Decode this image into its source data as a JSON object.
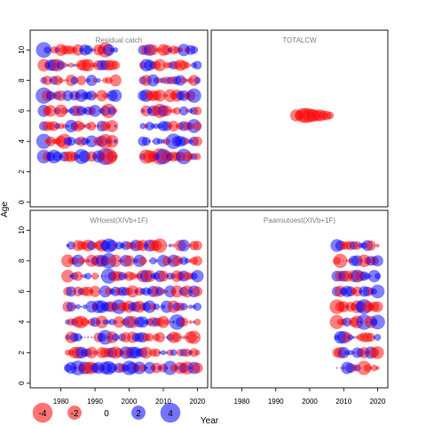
{
  "chart_data": {
    "type": "scatter",
    "subtype": "bubble-residuals",
    "xlabel": "Year",
    "ylabel": "Age",
    "xticks": [
      1980,
      1990,
      2000,
      2010,
      2020
    ],
    "yticks": [
      0,
      2,
      4,
      6,
      8,
      10
    ],
    "xlim": [
      1971,
      2023
    ],
    "ylim": [
      -0.3,
      11.3
    ],
    "colors": {
      "positive": "#0000FF",
      "negative": "#FF0000",
      "frame": "#000000",
      "title": "#808080"
    },
    "legend": {
      "placement": "bottom-left",
      "entries": [
        {
          "label": "-4",
          "value": -4
        },
        {
          "label": "-2",
          "value": -2
        },
        {
          "label": "0",
          "value": 0
        },
        {
          "label": "2",
          "value": 2
        },
        {
          "label": "4",
          "value": 4
        }
      ]
    },
    "panels": [
      {
        "title": "Residual catch",
        "ages": [
          3,
          4,
          5,
          6,
          7,
          8,
          9,
          10
        ],
        "year_ranges": [
          [
            1975,
            1996
          ],
          [
            2004,
            2020
          ]
        ],
        "x_tick_labels": false,
        "y_tick_labels": true,
        "residuals": [
          {
            "year": 1975,
            "age": 3,
            "value": 3.0
          },
          {
            "year": 1978,
            "age": 3,
            "value": 3.0
          },
          {
            "year": 1986,
            "age": 3,
            "value": 3.6
          },
          {
            "year": 1993,
            "age": 3,
            "value": 4.5
          },
          {
            "year": 1994,
            "age": 3,
            "value": -4.2
          },
          {
            "year": 2005,
            "age": 3,
            "value": -3.2
          },
          {
            "year": 2009,
            "age": 3,
            "value": -4.3
          },
          {
            "year": 2010,
            "age": 3,
            "value": 3.8
          },
          {
            "year": 2016,
            "age": 3,
            "value": 3.8
          },
          {
            "year": 1975,
            "age": 4,
            "value": 3.6
          },
          {
            "year": 1981,
            "age": 4,
            "value": -3.6
          },
          {
            "year": 1993,
            "age": 4,
            "value": -3.4
          },
          {
            "year": 2013,
            "age": 4,
            "value": 3.8
          },
          {
            "year": 1975,
            "age": 7,
            "value": 4.2
          },
          {
            "year": 1975,
            "age": 10,
            "value": 3.9
          },
          {
            "year": 1993,
            "age": 10,
            "value": -3.6
          },
          {
            "year": 1994,
            "age": 6,
            "value": -3.3
          },
          {
            "year": 2009,
            "age": 6,
            "value": -3.2
          },
          {
            "year": 2019,
            "age": 5,
            "value": 3.1
          },
          {
            "year": 2019,
            "age": 7,
            "value": 3.3
          }
        ]
      },
      {
        "title": "TOTALCW",
        "ages": [
          5.7
        ],
        "year_ranges": [
          [
            1996,
            2006
          ]
        ],
        "x_tick_labels": false,
        "y_tick_labels": false,
        "residuals": [
          {
            "year": 1996,
            "age": 5.7,
            "value": -2.3
          },
          {
            "year": 1997,
            "age": 5.7,
            "value": -1.6
          },
          {
            "year": 1998,
            "age": 5.7,
            "value": -3.4
          },
          {
            "year": 1999,
            "age": 5.7,
            "value": -3.6
          },
          {
            "year": 2000,
            "age": 5.7,
            "value": -3.0
          },
          {
            "year": 2001,
            "age": 5.7,
            "value": -2.6
          },
          {
            "year": 2002,
            "age": 5.7,
            "value": -2.0
          },
          {
            "year": 2003,
            "age": 5.7,
            "value": -2.3
          },
          {
            "year": 2004,
            "age": 5.7,
            "value": -1.6
          },
          {
            "year": 2005,
            "age": 5.7,
            "value": -1.4
          },
          {
            "year": 2006,
            "age": 5.7,
            "value": -0.9
          }
        ]
      },
      {
        "title": "WHoest(XIVb+1F)",
        "ages": [
          1,
          2,
          3,
          4,
          5,
          6,
          7,
          8,
          9
        ],
        "year_ranges": [
          [
            1982,
            2020
          ]
        ],
        "x_tick_labels": true,
        "y_tick_labels": true,
        "residuals": [
          {
            "year": 1985,
            "age": 1,
            "value": 3.4
          },
          {
            "year": 1994,
            "age": 1,
            "value": 3.0
          },
          {
            "year": 2000,
            "age": 1,
            "value": 3.3
          },
          {
            "year": 2012,
            "age": 1,
            "value": 3.2
          },
          {
            "year": 1994,
            "age": 8,
            "value": 3.8
          },
          {
            "year": 1994,
            "age": 9,
            "value": 3.2
          },
          {
            "year": 1994,
            "age": 7,
            "value": 3.7
          },
          {
            "year": 1993,
            "age": 3,
            "value": 3.4
          },
          {
            "year": 2014,
            "age": 4,
            "value": 3.8
          },
          {
            "year": 1997,
            "age": 5,
            "value": 3.4
          },
          {
            "year": 2009,
            "age": 9,
            "value": -3.2
          },
          {
            "year": 1982,
            "age": 8,
            "value": -2.6
          },
          {
            "year": 1982,
            "age": 7,
            "value": -2.6
          },
          {
            "year": 2019,
            "age": 3,
            "value": -2.8
          },
          {
            "year": 2017,
            "age": 1,
            "value": -2.7
          }
        ]
      },
      {
        "title": "Paamiutoest(XIVb+1F)",
        "ages": [
          1,
          2,
          3,
          4,
          5,
          6,
          7,
          8,
          9
        ],
        "year_ranges": [
          [
            2008,
            2020
          ]
        ],
        "x_tick_labels": true,
        "y_tick_labels": false,
        "residuals": [
          {
            "year": 2008,
            "age": 5,
            "value": -3.4
          },
          {
            "year": 2008,
            "age": 4,
            "value": -3.2
          },
          {
            "year": 2009,
            "age": 8,
            "value": -3.2
          },
          {
            "year": 2016,
            "age": 4,
            "value": 3.8
          },
          {
            "year": 2016,
            "age": 5,
            "value": 3.6
          },
          {
            "year": 2020,
            "age": 4,
            "value": 3.4
          },
          {
            "year": 2020,
            "age": 6,
            "value": 3.0
          },
          {
            "year": 2016,
            "age": 1,
            "value": -3.2
          }
        ]
      }
    ]
  }
}
